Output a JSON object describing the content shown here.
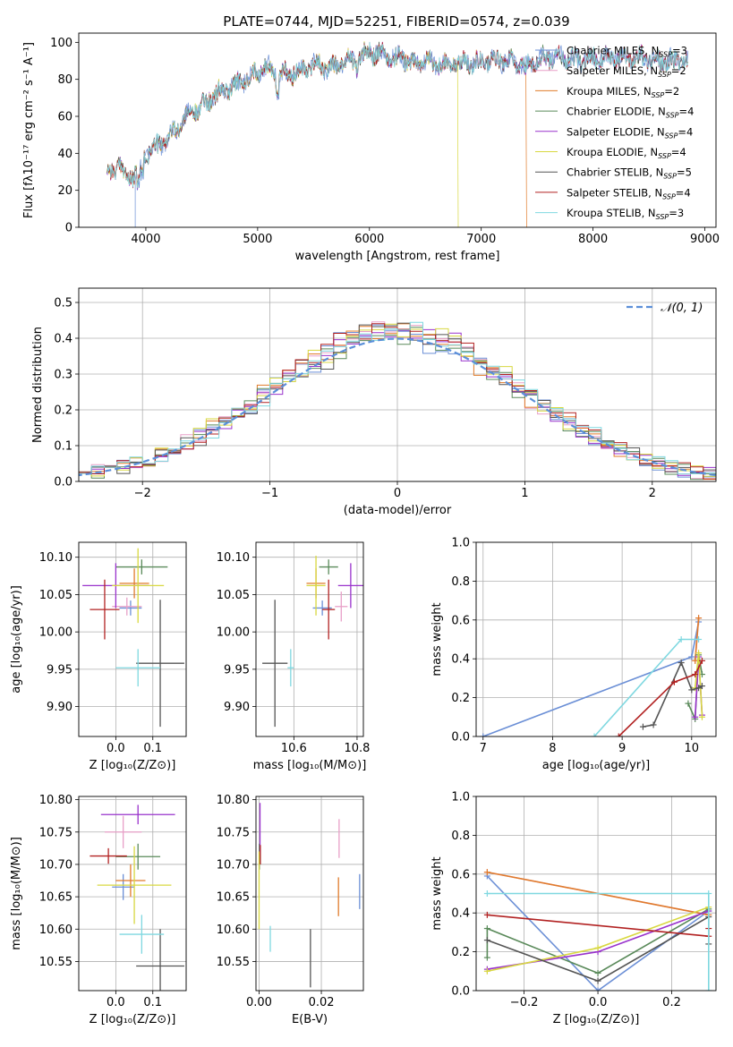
{
  "title": "PLATE=0744, MJD=52251, FIBERID=0574, z=0.039",
  "models": [
    {
      "name": "Chabrier MILES",
      "nssp": "3",
      "color": "#6b8fd6"
    },
    {
      "name": "Salpeter MILES",
      "nssp": "2",
      "color": "#e8a0c8"
    },
    {
      "name": "Kroupa MILES",
      "nssp": "2",
      "color": "#e07b2a"
    },
    {
      "name": "Chabrier ELODIE",
      "nssp": "4",
      "color": "#5a8a5a"
    },
    {
      "name": "Salpeter ELODIE",
      "nssp": "4",
      "color": "#9932cc"
    },
    {
      "name": "Kroupa ELODIE",
      "nssp": "4",
      "color": "#d8d840"
    },
    {
      "name": "Chabrier STELIB",
      "nssp": "5",
      "color": "#555555"
    },
    {
      "name": "Salpeter STELIB",
      "nssp": "4",
      "color": "#b22222"
    },
    {
      "name": "Kroupa STELIB",
      "nssp": "3",
      "color": "#7fd8e0"
    }
  ],
  "legend_prefix": "N",
  "legend_sub": "SSP",
  "chart_data": [
    {
      "id": "spectrum",
      "type": "line",
      "xlabel": "wavelength [Angstrom, rest frame]",
      "ylabel": "Flux [fλ10⁻¹⁷ erg cm⁻² s⁻¹ A⁻¹]",
      "xlim": [
        3400,
        9100
      ],
      "ylim": [
        0,
        105
      ],
      "xticks": [
        4000,
        5000,
        6000,
        7000,
        8000,
        9000
      ],
      "yticks": [
        0,
        20,
        40,
        60,
        80,
        100
      ],
      "spectrum_x": [
        3650,
        3750,
        3850,
        3920,
        4000,
        4100,
        4200,
        4300,
        4400,
        4500,
        4600,
        4700,
        4800,
        4900,
        5000,
        5100,
        5200,
        5300,
        5400,
        5500,
        5600,
        5700,
        5800,
        5900,
        6000,
        6100,
        6200,
        6300,
        6400,
        6500,
        6600,
        6700,
        6800,
        6900,
        7000,
        7100,
        7200,
        7300,
        7400,
        7500,
        7600,
        7700,
        7800,
        7900,
        8000,
        8200,
        8400,
        8600,
        8800
      ],
      "spectrum_y": [
        30,
        33,
        27,
        28,
        40,
        44,
        48,
        55,
        62,
        66,
        70,
        75,
        77,
        80,
        85,
        86,
        82,
        83,
        86,
        89,
        86,
        88,
        90,
        91,
        95,
        94,
        91,
        92,
        88,
        90,
        88,
        89,
        88,
        90,
        89,
        91,
        90,
        89,
        86,
        90,
        92,
        92,
        91,
        90,
        91,
        92,
        92,
        90,
        90
      ],
      "drops": [
        {
          "model": "Chabrier MILES",
          "wavelength": 3905
        },
        {
          "model": "Kroupa ELODIE",
          "wavelength": 6790
        },
        {
          "model": "Kroupa MILES",
          "wavelength": 7400
        }
      ]
    },
    {
      "id": "residuals",
      "type": "histogram",
      "xlabel": "(data-model)/error",
      "ylabel": "Normed distribution",
      "xlim": [
        -2.5,
        2.5
      ],
      "ylim": [
        0,
        0.54
      ],
      "xticks": [
        -2,
        -1,
        0,
        1,
        2
      ],
      "yticks": [
        0.0,
        0.1,
        0.2,
        0.3,
        0.4,
        0.5
      ],
      "bin_width": 0.1,
      "reference_curve": "N(0,1)",
      "legend": "𝒩(0, 1)"
    },
    {
      "id": "age-vs-Z",
      "type": "errorbar",
      "xlabel": "Z [log₁₀(Z/Z⊙)]",
      "ylabel": "age  [log₁₀(age/yr)]",
      "xlim": [
        -0.1,
        0.19
      ],
      "ylim": [
        9.86,
        10.12
      ],
      "xticks": [
        0.0,
        0.1
      ],
      "yticks": [
        9.9,
        9.95,
        10.0,
        10.05,
        10.1
      ],
      "points": [
        {
          "model": "Chabrier MILES",
          "x": 0.04,
          "y": 10.032,
          "xerr": 0.03,
          "yerr": 0.01
        },
        {
          "model": "Salpeter MILES",
          "x": 0.03,
          "y": 10.034,
          "xerr": 0.04,
          "yerr": 0.012
        },
        {
          "model": "Kroupa MILES",
          "x": 0.05,
          "y": 10.065,
          "xerr": 0.04,
          "yerr": 0.02
        },
        {
          "model": "Chabrier ELODIE",
          "x": 0.07,
          "y": 10.087,
          "xerr": 0.07,
          "yerr": 0.01
        },
        {
          "model": "Salpeter ELODIE",
          "x": 0.0,
          "y": 10.062,
          "xerr": 0.09,
          "yerr": 0.03
        },
        {
          "model": "Kroupa ELODIE",
          "x": 0.06,
          "y": 10.062,
          "xerr": 0.07,
          "yerr": 0.05
        },
        {
          "model": "Chabrier STELIB",
          "x": 0.12,
          "y": 9.958,
          "xerr": 0.065,
          "yerr": 0.085
        },
        {
          "model": "Salpeter STELIB",
          "x": -0.03,
          "y": 10.03,
          "xerr": 0.04,
          "yerr": 0.04
        },
        {
          "model": "Kroupa STELIB",
          "x": 0.06,
          "y": 9.952,
          "xerr": 0.06,
          "yerr": 0.025
        }
      ]
    },
    {
      "id": "age-vs-mass",
      "type": "errorbar",
      "xlabel": "mass [log₁₀(M/M⊙)]",
      "ylabel": "",
      "xlim": [
        10.48,
        10.82
      ],
      "ylim": [
        9.86,
        10.12
      ],
      "xticks": [
        10.6,
        10.8
      ],
      "yticks": [
        9.9,
        9.95,
        10.0,
        10.05,
        10.1
      ],
      "points": [
        {
          "model": "Chabrier MILES",
          "x": 10.69,
          "y": 10.032,
          "xerr": 0.03,
          "yerr": 0.01
        },
        {
          "model": "Salpeter MILES",
          "x": 10.75,
          "y": 10.034,
          "xerr": 0.02,
          "yerr": 0.02
        },
        {
          "model": "Kroupa MILES",
          "x": 10.67,
          "y": 10.065,
          "xerr": 0.03,
          "yerr": 0.02
        },
        {
          "model": "Chabrier ELODIE",
          "x": 10.71,
          "y": 10.087,
          "xerr": 0.03,
          "yerr": 0.01
        },
        {
          "model": "Salpeter ELODIE",
          "x": 10.78,
          "y": 10.062,
          "xerr": 0.04,
          "yerr": 0.03
        },
        {
          "model": "Kroupa ELODIE",
          "x": 10.67,
          "y": 10.062,
          "xerr": 0.03,
          "yerr": 0.04
        },
        {
          "model": "Chabrier STELIB",
          "x": 10.54,
          "y": 9.958,
          "xerr": 0.04,
          "yerr": 0.085
        },
        {
          "model": "Salpeter STELIB",
          "x": 10.71,
          "y": 10.03,
          "xerr": 0.02,
          "yerr": 0.04
        },
        {
          "model": "Kroupa STELIB",
          "x": 10.59,
          "y": 9.952,
          "xerr": 0.01,
          "yerr": 0.025
        }
      ]
    },
    {
      "id": "mass-weight-vs-age",
      "type": "line",
      "xlabel": "age  [log₁₀(age/yr)]",
      "ylabel": "mass weight",
      "xlim": [
        6.9,
        10.35
      ],
      "ylim": [
        0,
        1
      ],
      "xticks": [
        7,
        8,
        9,
        10
      ],
      "yticks": [
        0.0,
        0.2,
        0.4,
        0.6,
        0.8,
        1.0
      ],
      "series": [
        {
          "model": "Chabrier MILES",
          "x": [
            7.0,
            10.0,
            10.1
          ],
          "y": [
            0.0,
            0.41,
            0.59
          ]
        },
        {
          "model": "Salpeter MILES",
          "x": [
            10.05,
            10.1
          ],
          "y": [
            0.39,
            0.61
          ]
        },
        {
          "model": "Kroupa MILES",
          "x": [
            10.05,
            10.1
          ],
          "y": [
            0.39,
            0.61
          ]
        },
        {
          "model": "Chabrier ELODIE",
          "x": [
            9.95,
            10.05,
            10.1,
            10.15
          ],
          "y": [
            0.17,
            0.09,
            0.42,
            0.32
          ]
        },
        {
          "model": "Salpeter ELODIE",
          "x": [
            10.05,
            10.1,
            10.15
          ],
          "y": [
            0.1,
            0.41,
            0.11
          ]
        },
        {
          "model": "Kroupa ELODIE",
          "x": [
            10.05,
            10.1,
            10.15
          ],
          "y": [
            0.25,
            0.43,
            0.1
          ]
        },
        {
          "model": "Chabrier STELIB",
          "x": [
            9.3,
            9.45,
            9.85,
            10.0,
            10.1,
            10.15
          ],
          "y": [
            0.05,
            0.06,
            0.38,
            0.24,
            0.25,
            0.26
          ]
        },
        {
          "model": "Salpeter STELIB",
          "x": [
            8.95,
            9.75,
            10.05,
            10.15
          ],
          "y": [
            0.0,
            0.28,
            0.32,
            0.39
          ]
        },
        {
          "model": "Kroupa STELIB",
          "x": [
            8.6,
            9.85,
            10.1
          ],
          "y": [
            0.0,
            0.5,
            0.5
          ]
        }
      ]
    },
    {
      "id": "mass-vs-Z",
      "type": "errorbar",
      "xlabel": "Z [log₁₀(Z/Z⊙)]",
      "ylabel": "mass [log₁₀(M/M⊙)]",
      "xlim": [
        -0.1,
        0.19
      ],
      "ylim": [
        10.505,
        10.805
      ],
      "xticks": [
        0.0,
        0.1
      ],
      "yticks": [
        10.55,
        10.6,
        10.65,
        10.7,
        10.75,
        10.8
      ],
      "points": [
        {
          "model": "Chabrier MILES",
          "x": 0.02,
          "y": 10.665,
          "xerr": 0.03,
          "yerr": 0.02
        },
        {
          "model": "Salpeter MILES",
          "x": 0.02,
          "y": 10.75,
          "xerr": 0.05,
          "yerr": 0.025
        },
        {
          "model": "Kroupa MILES",
          "x": 0.04,
          "y": 10.675,
          "xerr": 0.04,
          "yerr": 0.025
        },
        {
          "model": "Chabrier ELODIE",
          "x": 0.06,
          "y": 10.712,
          "xerr": 0.06,
          "yerr": 0.02
        },
        {
          "model": "Salpeter ELODIE",
          "x": 0.06,
          "y": 10.777,
          "xerr": 0.1,
          "yerr": 0.015
        },
        {
          "model": "Kroupa ELODIE",
          "x": 0.05,
          "y": 10.668,
          "xerr": 0.1,
          "yerr": 0.06
        },
        {
          "model": "Chabrier STELIB",
          "x": 0.12,
          "y": 10.543,
          "xerr": 0.065,
          "yerr": 0.057
        },
        {
          "model": "Salpeter STELIB",
          "x": -0.02,
          "y": 10.713,
          "xerr": 0.05,
          "yerr": 0.012
        },
        {
          "model": "Kroupa STELIB",
          "x": 0.07,
          "y": 10.592,
          "xerr": 0.06,
          "yerr": 0.03
        }
      ]
    },
    {
      "id": "mass-vs-EBV",
      "type": "errorbar",
      "xlabel": "E(B-V)",
      "ylabel": "",
      "xlim": [
        -0.001,
        0.0335
      ],
      "ylim": [
        10.505,
        10.805
      ],
      "xticks": [
        0.0,
        0.02
      ],
      "yticks": [
        10.55,
        10.6,
        10.65,
        10.7,
        10.75,
        10.8
      ],
      "points": [
        {
          "model": "Chabrier MILES",
          "x": 0.0323,
          "y": 10.658,
          "xerr": 0.0,
          "yerr": 0.027
        },
        {
          "model": "Salpeter MILES",
          "x": 0.0257,
          "y": 10.74,
          "xerr": 0.0,
          "yerr": 0.03
        },
        {
          "model": "Kroupa MILES",
          "x": 0.0255,
          "y": 10.65,
          "xerr": 0.0,
          "yerr": 0.03
        },
        {
          "model": "Chabrier ELODIE",
          "x": 0.0001,
          "y": 10.712,
          "xerr": 0.0,
          "yerr": 0.02
        },
        {
          "model": "Salpeter ELODIE",
          "x": 0.0003,
          "y": 10.755,
          "xerr": 0.0,
          "yerr": 0.04
        },
        {
          "model": "Kroupa ELODIE",
          "x": 0.0,
          "y": 10.66,
          "xerr": 0.0,
          "yerr": 0.06
        },
        {
          "model": "Chabrier STELIB",
          "x": 0.0165,
          "y": 10.555,
          "xerr": 0.0,
          "yerr": 0.045
        },
        {
          "model": "Salpeter STELIB",
          "x": 0.0004,
          "y": 10.715,
          "xerr": 0.0,
          "yerr": 0.015
        },
        {
          "model": "Kroupa STELIB",
          "x": 0.0036,
          "y": 10.585,
          "xerr": 0.0,
          "yerr": 0.02
        }
      ]
    },
    {
      "id": "mass-weight-vs-Z",
      "type": "line",
      "xlabel": "Z [log₁₀(Z/Z⊙)]",
      "ylabel": "mass weight",
      "xlim": [
        -0.33,
        0.32
      ],
      "ylim": [
        0,
        1
      ],
      "xticks": [
        -0.2,
        0.0,
        0.2
      ],
      "yticks": [
        0.0,
        0.2,
        0.4,
        0.6,
        0.8,
        1.0
      ],
      "series": [
        {
          "model": "Chabrier MILES",
          "x": [
            -0.3,
            0.0,
            0.3
          ],
          "y": [
            0.59,
            0.0,
            0.41
          ]
        },
        {
          "model": "Salpeter MILES",
          "x": [
            -0.3,
            0.3
          ],
          "y": [
            0.61,
            0.39
          ]
        },
        {
          "model": "Kroupa MILES",
          "x": [
            -0.3,
            0.3
          ],
          "y": [
            0.61,
            0.39
          ]
        },
        {
          "model": "Chabrier ELODIE",
          "x": [
            -0.3,
            -0.3,
            0.0,
            0.3
          ],
          "y": [
            0.17,
            0.32,
            0.09,
            0.42
          ]
        },
        {
          "model": "Salpeter ELODIE",
          "x": [
            -0.3,
            0.0,
            0.3
          ],
          "y": [
            0.11,
            0.2,
            0.41
          ]
        },
        {
          "model": "Kroupa ELODIE",
          "x": [
            -0.3,
            0.0,
            0.3
          ],
          "y": [
            0.1,
            0.22,
            0.43
          ]
        },
        {
          "model": "Chabrier STELIB",
          "x": [
            -0.3,
            0.0,
            0.3,
            0.3
          ],
          "y": [
            0.26,
            0.05,
            0.38,
            0.24
          ]
        },
        {
          "model": "Salpeter STELIB",
          "x": [
            -0.3,
            0.3,
            0.3
          ],
          "y": [
            0.39,
            0.28,
            0.32
          ]
        },
        {
          "model": "Kroupa STELIB",
          "x": [
            -0.3,
            0.3,
            0.3
          ],
          "y": [
            0.5,
            0.5,
            0.0
          ]
        }
      ]
    }
  ]
}
